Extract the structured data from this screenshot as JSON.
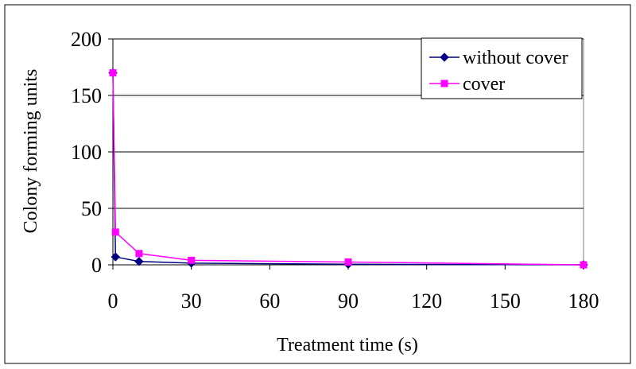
{
  "chart_data": {
    "type": "line",
    "title": "",
    "xlabel": "Treatment time (s)",
    "ylabel": "Colony forming units",
    "xlim": [
      0,
      180
    ],
    "ylim": [
      0,
      200
    ],
    "x_ticks": [
      "0",
      "30",
      "60",
      "90",
      "120",
      "150",
      "180"
    ],
    "y_ticks": [
      "0",
      "50",
      "100",
      "150",
      "200"
    ],
    "grid": "horizontal",
    "legend_position": "top-right",
    "series": [
      {
        "name": "without cover",
        "color": "#000080",
        "marker": "diamond",
        "x": [
          0,
          1,
          10,
          30,
          90,
          180
        ],
        "values": [
          170,
          7,
          3,
          1.5,
          0.5,
          0
        ]
      },
      {
        "name": "cover",
        "color": "#FF00FF",
        "marker": "square",
        "x": [
          0,
          1,
          10,
          30,
          90,
          180
        ],
        "values": [
          170,
          29,
          10,
          4,
          2.5,
          0
        ]
      }
    ]
  }
}
